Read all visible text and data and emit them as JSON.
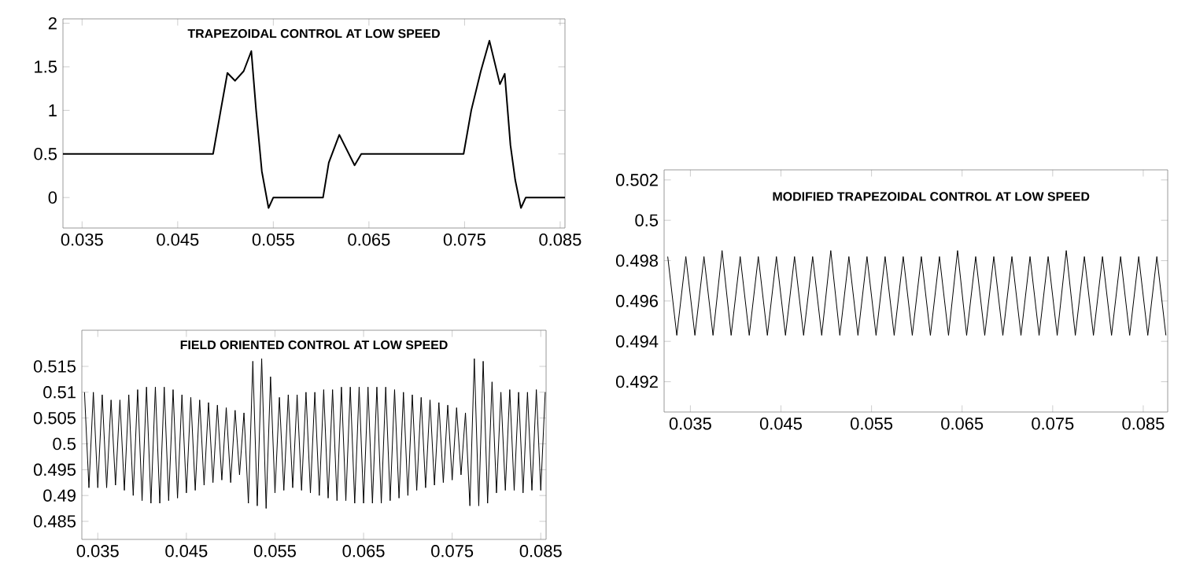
{
  "chart_data": [
    {
      "type": "line",
      "title": "TRAPEZOIDAL CONTROL AT LOW SPEED",
      "xlim": [
        0.033,
        0.0855
      ],
      "ylim": [
        -0.35,
        2.05
      ],
      "xticks": [
        0.035,
        0.045,
        0.055,
        0.065,
        0.075,
        0.085
      ],
      "yticks": [
        0,
        0.5,
        1,
        1.5,
        2
      ],
      "grid": false,
      "marker": "none",
      "line_style": "solid",
      "series": [
        {
          "color": "#000000",
          "x": [
            0.033,
            0.0487,
            0.0495,
            0.0502,
            0.051,
            0.0519,
            0.0527,
            0.0532,
            0.0538,
            0.0545,
            0.055,
            0.0602,
            0.0608,
            0.0619,
            0.0635,
            0.0642,
            0.0749,
            0.0757,
            0.0767,
            0.0776,
            0.0787,
            0.0792,
            0.0798,
            0.0803,
            0.0809,
            0.0814,
            0.0855
          ],
          "values": [
            0.5,
            0.5,
            1.0,
            1.43,
            1.34,
            1.45,
            1.68,
            1.0,
            0.3,
            -0.12,
            0,
            0,
            0.4,
            0.72,
            0.37,
            0.5,
            0.5,
            1.0,
            1.45,
            1.8,
            1.3,
            1.42,
            0.6,
            0.2,
            -0.12,
            0,
            0
          ]
        }
      ]
    },
    {
      "type": "line",
      "title": "FIELD ORIENTED CONTROL AT LOW SPEED",
      "xlim": [
        0.0332,
        0.0856
      ],
      "ylim": [
        0.4815,
        0.522
      ],
      "xticks": [
        0.035,
        0.045,
        0.055,
        0.065,
        0.075,
        0.085
      ],
      "yticks": [
        0.485,
        0.49,
        0.495,
        0.5,
        0.505,
        0.51,
        0.515
      ],
      "grid": false,
      "marker": "none",
      "line_style": "solid",
      "series": [
        {
          "color": "#000000",
          "x": [
            0.0335,
            0.034,
            0.0345,
            0.035,
            0.0355,
            0.036,
            0.0365,
            0.037,
            0.0375,
            0.038,
            0.0385,
            0.039,
            0.0395,
            0.04,
            0.0405,
            0.041,
            0.0415,
            0.042,
            0.0425,
            0.043,
            0.0435,
            0.044,
            0.0445,
            0.045,
            0.0455,
            0.046,
            0.0465,
            0.047,
            0.0475,
            0.048,
            0.0485,
            0.049,
            0.0495,
            0.05,
            0.0505,
            0.051,
            0.0515,
            0.052,
            0.0525,
            0.053,
            0.0535,
            0.054,
            0.0545,
            0.055,
            0.0555,
            0.056,
            0.0565,
            0.057,
            0.0575,
            0.058,
            0.0585,
            0.059,
            0.0595,
            0.06,
            0.0605,
            0.061,
            0.0615,
            0.062,
            0.0625,
            0.063,
            0.0635,
            0.064,
            0.0645,
            0.065,
            0.0655,
            0.066,
            0.0665,
            0.067,
            0.0675,
            0.068,
            0.0685,
            0.069,
            0.0695,
            0.07,
            0.0705,
            0.071,
            0.0715,
            0.072,
            0.0725,
            0.073,
            0.0735,
            0.074,
            0.0745,
            0.075,
            0.0755,
            0.076,
            0.0765,
            0.077,
            0.0775,
            0.078,
            0.0785,
            0.079,
            0.0795,
            0.08,
            0.0805,
            0.081,
            0.0815,
            0.082,
            0.0825,
            0.083,
            0.0835,
            0.084,
            0.0845,
            0.085,
            0.0855
          ],
          "values": [
            0.51,
            0.4915,
            0.51,
            0.4915,
            0.5095,
            0.4915,
            0.5085,
            0.492,
            0.5085,
            0.491,
            0.5095,
            0.49,
            0.5105,
            0.489,
            0.511,
            0.4885,
            0.511,
            0.4885,
            0.511,
            0.489,
            0.5105,
            0.4895,
            0.5095,
            0.4905,
            0.509,
            0.491,
            0.5085,
            0.492,
            0.508,
            0.4925,
            0.5075,
            0.493,
            0.507,
            0.4925,
            0.5065,
            0.494,
            0.506,
            0.4885,
            0.516,
            0.488,
            0.5165,
            0.4875,
            0.513,
            0.4905,
            0.509,
            0.491,
            0.5095,
            0.4915,
            0.5095,
            0.491,
            0.51,
            0.4905,
            0.51,
            0.49,
            0.5105,
            0.4895,
            0.5105,
            0.489,
            0.511,
            0.489,
            0.511,
            0.4885,
            0.511,
            0.4885,
            0.511,
            0.4885,
            0.511,
            0.4885,
            0.511,
            0.489,
            0.5105,
            0.4895,
            0.51,
            0.49,
            0.5095,
            0.491,
            0.509,
            0.4915,
            0.5085,
            0.492,
            0.508,
            0.4925,
            0.5075,
            0.493,
            0.507,
            0.494,
            0.506,
            0.488,
            0.5165,
            0.488,
            0.516,
            0.4885,
            0.512,
            0.4905,
            0.51,
            0.491,
            0.5105,
            0.491,
            0.51,
            0.4905,
            0.51,
            0.491,
            0.5105,
            0.491,
            0.51
          ]
        }
      ]
    },
    {
      "type": "line",
      "title": "MODIFIED TRAPEZOIDAL CONTROL AT LOW SPEED",
      "xlim": [
        0.0321,
        0.0877
      ],
      "ylim": [
        0.4905,
        0.5025
      ],
      "xticks": [
        0.035,
        0.045,
        0.055,
        0.065,
        0.075,
        0.085
      ],
      "yticks": [
        0.492,
        0.494,
        0.496,
        0.498,
        0.5,
        0.502
      ],
      "grid": false,
      "marker": "none",
      "line_style": "solid",
      "series": [
        {
          "color": "#000000",
          "x": [
            0.0325,
            0.0335,
            0.0345,
            0.0355,
            0.0365,
            0.0375,
            0.0385,
            0.0395,
            0.0405,
            0.0415,
            0.0425,
            0.0435,
            0.0445,
            0.0455,
            0.0465,
            0.0475,
            0.0485,
            0.0495,
            0.0505,
            0.0515,
            0.0525,
            0.0535,
            0.0545,
            0.0555,
            0.0565,
            0.0575,
            0.0585,
            0.0595,
            0.0605,
            0.0615,
            0.0625,
            0.0635,
            0.0645,
            0.0655,
            0.0665,
            0.0675,
            0.0685,
            0.0695,
            0.0705,
            0.0715,
            0.0725,
            0.0735,
            0.0745,
            0.0755,
            0.0765,
            0.0775,
            0.0785,
            0.0795,
            0.0805,
            0.0815,
            0.0825,
            0.0835,
            0.0845,
            0.0855,
            0.0865,
            0.0875
          ],
          "values": [
            0.4982,
            0.4943,
            0.4982,
            0.4943,
            0.4982,
            0.4943,
            0.4985,
            0.4943,
            0.4982,
            0.4943,
            0.4982,
            0.4943,
            0.4982,
            0.4943,
            0.4982,
            0.4943,
            0.4982,
            0.4943,
            0.4985,
            0.4943,
            0.4982,
            0.4943,
            0.4982,
            0.4943,
            0.4982,
            0.4943,
            0.4982,
            0.4943,
            0.4982,
            0.4943,
            0.4982,
            0.4943,
            0.4985,
            0.4943,
            0.4982,
            0.4943,
            0.4982,
            0.4943,
            0.4982,
            0.4943,
            0.4982,
            0.4943,
            0.4982,
            0.4943,
            0.4985,
            0.4943,
            0.4982,
            0.4943,
            0.4982,
            0.4943,
            0.4982,
            0.4943,
            0.4982,
            0.4943,
            0.4982,
            0.4943
          ]
        }
      ]
    }
  ]
}
